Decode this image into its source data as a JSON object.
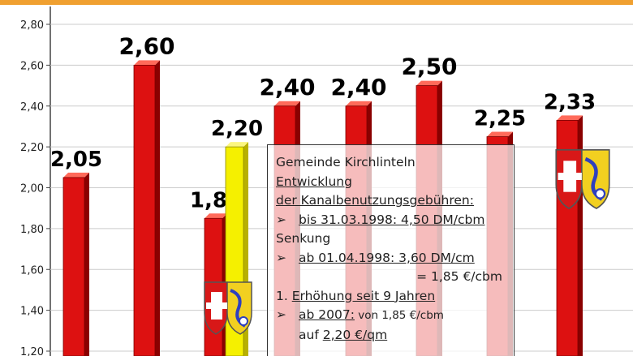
{
  "chart_data": {
    "type": "bar",
    "categories": [
      "",
      "",
      "",
      "",
      "",
      "",
      "",
      "",
      ""
    ],
    "values": [
      2.05,
      2.6,
      1.85,
      2.2,
      2.4,
      2.4,
      2.5,
      2.25,
      2.33
    ],
    "value_labels": [
      "2,05",
      "2,60",
      "1,85",
      "2,20",
      "2,40",
      "2,40",
      "2,50",
      "2,25",
      "2,33"
    ],
    "highlight_index": 3,
    "ylim": [
      1.1,
      2.9
    ],
    "yticks": [
      1.2,
      1.4,
      1.6,
      1.8,
      2.0,
      2.2,
      2.4,
      2.6,
      2.8
    ],
    "ytick_labels": [
      "1,20",
      "1,40",
      "1,60",
      "1,80",
      "2,00",
      "2,20",
      "2,40",
      "2,60",
      "2,80"
    ],
    "grid": true,
    "colors": {
      "bar": "#dd1111",
      "highlight": "#f5f000",
      "grid": "#cccccc",
      "accent": "#f0a030"
    }
  },
  "info": {
    "title": "Gemeinde Kirchlinteln",
    "line2": "Entwicklung",
    "line3": "der Kanalbenutzungsgebühren:",
    "bullet1": "bis 31.03.1998: 4,50 DM/cbm",
    "line5": "Senkung",
    "bullet2": "ab  01.04.1998: 3,60 DM/cm",
    "line7": "= 1,85 €/cbm",
    "line8_prefix": "1. ",
    "line8_u": "Erhöhung seit 9 Jahren",
    "bullet3_u": "ab 2007:",
    "bullet3_rest": " von 1,85 €/cbm",
    "line10_prefix": "auf ",
    "line10_u": "2,20 €/qm",
    "bullet_symbol": "➢"
  },
  "icons": {
    "crest": "coat-of-arms-icon"
  }
}
